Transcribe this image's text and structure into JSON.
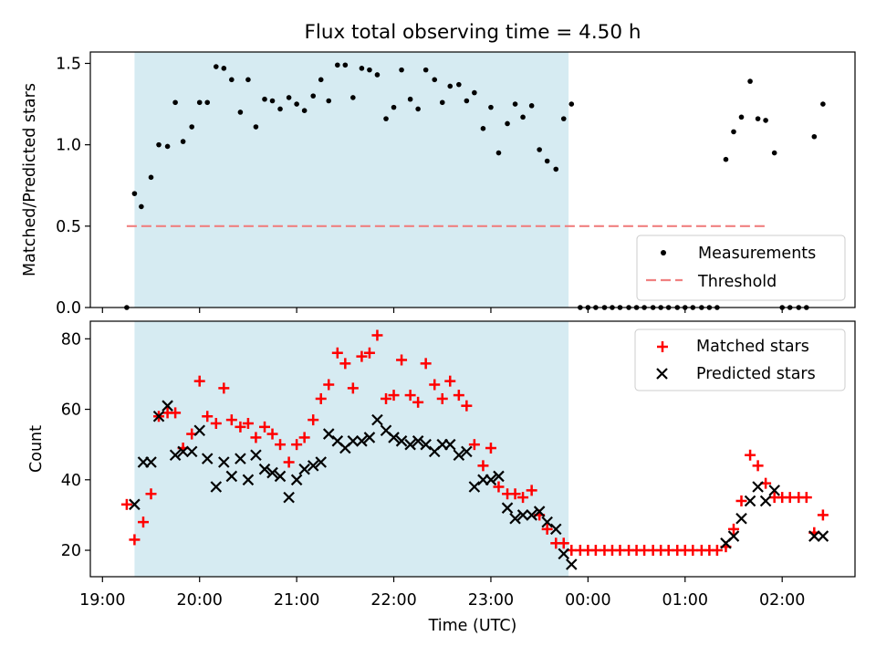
{
  "chart_data": {
    "title": "Flux total observing time = 4.50 h",
    "xlabel": "Time (UTC)",
    "x_ticks": [
      "19:00",
      "20:00",
      "21:00",
      "22:00",
      "23:00",
      "00:00",
      "01:00",
      "02:00"
    ],
    "observing_window_x": [
      19.33,
      23.8
    ],
    "panels": [
      {
        "type": "scatter",
        "ylabel": "Matched/Predicted stars",
        "ylim": [
          0,
          1.57
        ],
        "y_ticks": [
          "0.0",
          "0.5",
          "1.0",
          "1.5"
        ],
        "legend": {
          "position": "lower-right",
          "items": [
            "Measurements",
            "Threshold"
          ]
        },
        "threshold": {
          "name": "Threshold",
          "value": 0.5,
          "x_range": [
            19.25,
            25.83
          ],
          "color": "#f08080"
        },
        "series": [
          {
            "name": "Measurements",
            "color": "#000000",
            "points": [
              [
                19.25,
                0
              ],
              [
                19.33,
                0.7
              ],
              [
                19.4,
                0.62
              ],
              [
                19.5,
                0.8
              ],
              [
                19.58,
                1.0
              ],
              [
                19.67,
                0.99
              ],
              [
                19.75,
                1.26
              ],
              [
                19.83,
                1.02
              ],
              [
                19.92,
                1.11
              ],
              [
                20.0,
                1.26
              ],
              [
                20.08,
                1.26
              ],
              [
                20.17,
                1.48
              ],
              [
                20.25,
                1.47
              ],
              [
                20.33,
                1.4
              ],
              [
                20.42,
                1.2
              ],
              [
                20.5,
                1.4
              ],
              [
                20.58,
                1.11
              ],
              [
                20.67,
                1.28
              ],
              [
                20.75,
                1.27
              ],
              [
                20.83,
                1.22
              ],
              [
                20.92,
                1.29
              ],
              [
                21.0,
                1.25
              ],
              [
                21.08,
                1.21
              ],
              [
                21.17,
                1.3
              ],
              [
                21.25,
                1.4
              ],
              [
                21.33,
                1.27
              ],
              [
                21.42,
                1.49
              ],
              [
                21.5,
                1.49
              ],
              [
                21.58,
                1.29
              ],
              [
                21.67,
                1.47
              ],
              [
                21.75,
                1.46
              ],
              [
                21.83,
                1.43
              ],
              [
                21.92,
                1.16
              ],
              [
                22.0,
                1.23
              ],
              [
                22.08,
                1.46
              ],
              [
                22.17,
                1.28
              ],
              [
                22.25,
                1.22
              ],
              [
                22.33,
                1.46
              ],
              [
                22.42,
                1.4
              ],
              [
                22.5,
                1.26
              ],
              [
                22.58,
                1.36
              ],
              [
                22.67,
                1.37
              ],
              [
                22.75,
                1.27
              ],
              [
                22.83,
                1.32
              ],
              [
                22.92,
                1.1
              ],
              [
                23.0,
                1.23
              ],
              [
                23.08,
                0.95
              ],
              [
                23.17,
                1.13
              ],
              [
                23.25,
                1.25
              ],
              [
                23.33,
                1.17
              ],
              [
                23.42,
                1.24
              ],
              [
                23.5,
                0.97
              ],
              [
                23.58,
                0.9
              ],
              [
                23.67,
                0.85
              ],
              [
                23.75,
                1.16
              ],
              [
                23.83,
                1.25
              ],
              [
                23.92,
                0
              ],
              [
                24.0,
                0
              ],
              [
                24.08,
                0
              ],
              [
                24.17,
                0
              ],
              [
                24.25,
                0
              ],
              [
                24.33,
                0
              ],
              [
                24.42,
                0
              ],
              [
                24.5,
                0
              ],
              [
                24.58,
                0
              ],
              [
                24.67,
                0
              ],
              [
                24.75,
                0
              ],
              [
                24.83,
                0
              ],
              [
                24.92,
                0
              ],
              [
                25.0,
                0
              ],
              [
                25.08,
                0
              ],
              [
                25.17,
                0
              ],
              [
                25.25,
                0
              ],
              [
                25.33,
                0
              ],
              [
                25.42,
                0.91
              ],
              [
                25.5,
                1.08
              ],
              [
                25.58,
                1.17
              ],
              [
                25.67,
                1.39
              ],
              [
                25.75,
                1.16
              ],
              [
                25.83,
                1.15
              ],
              [
                25.92,
                0.95
              ],
              [
                26.0,
                0
              ],
              [
                26.08,
                0
              ],
              [
                26.17,
                0
              ],
              [
                26.25,
                0
              ],
              [
                26.33,
                1.05
              ],
              [
                26.42,
                1.25
              ]
            ]
          }
        ]
      },
      {
        "type": "scatter",
        "ylabel": "Count",
        "ylim": [
          12.5,
          85
        ],
        "y_ticks": [
          "20",
          "40",
          "60",
          "80"
        ],
        "legend": {
          "position": "top-right",
          "items": [
            "Matched stars",
            "Predicted stars"
          ]
        },
        "series": [
          {
            "name": "Matched stars",
            "marker": "+",
            "color": "#ff0000",
            "points": [
              [
                19.25,
                33
              ],
              [
                19.33,
                23
              ],
              [
                19.42,
                28
              ],
              [
                19.5,
                36
              ],
              [
                19.58,
                58
              ],
              [
                19.67,
                59
              ],
              [
                19.75,
                59
              ],
              [
                19.83,
                49
              ],
              [
                19.92,
                53
              ],
              [
                20.0,
                68
              ],
              [
                20.08,
                58
              ],
              [
                20.17,
                56
              ],
              [
                20.25,
                66
              ],
              [
                20.33,
                57
              ],
              [
                20.42,
                55
              ],
              [
                20.5,
                56
              ],
              [
                20.58,
                52
              ],
              [
                20.67,
                55
              ],
              [
                20.75,
                53
              ],
              [
                20.83,
                50
              ],
              [
                20.92,
                45
              ],
              [
                21.0,
                50
              ],
              [
                21.08,
                52
              ],
              [
                21.17,
                57
              ],
              [
                21.25,
                63
              ],
              [
                21.33,
                67
              ],
              [
                21.42,
                76
              ],
              [
                21.5,
                73
              ],
              [
                21.58,
                66
              ],
              [
                21.67,
                75
              ],
              [
                21.75,
                76
              ],
              [
                21.83,
                81
              ],
              [
                21.92,
                63
              ],
              [
                22.0,
                64
              ],
              [
                22.08,
                74
              ],
              [
                22.17,
                64
              ],
              [
                22.25,
                62
              ],
              [
                22.33,
                73
              ],
              [
                22.42,
                67
              ],
              [
                22.5,
                63
              ],
              [
                22.58,
                68
              ],
              [
                22.67,
                64
              ],
              [
                22.75,
                61
              ],
              [
                22.83,
                50
              ],
              [
                22.92,
                44
              ],
              [
                23.0,
                49
              ],
              [
                23.08,
                38
              ],
              [
                23.17,
                36
              ],
              [
                23.25,
                36
              ],
              [
                23.33,
                35
              ],
              [
                23.42,
                37
              ],
              [
                23.5,
                30
              ],
              [
                23.58,
                26
              ],
              [
                23.67,
                22
              ],
              [
                23.75,
                22
              ],
              [
                23.83,
                20
              ],
              [
                23.92,
                20
              ],
              [
                24.0,
                20
              ],
              [
                24.08,
                20
              ],
              [
                24.17,
                20
              ],
              [
                24.25,
                20
              ],
              [
                24.33,
                20
              ],
              [
                24.42,
                20
              ],
              [
                24.5,
                20
              ],
              [
                24.58,
                20
              ],
              [
                24.67,
                20
              ],
              [
                24.75,
                20
              ],
              [
                24.83,
                20
              ],
              [
                24.92,
                20
              ],
              [
                25.0,
                20
              ],
              [
                25.08,
                20
              ],
              [
                25.17,
                20
              ],
              [
                25.25,
                20
              ],
              [
                25.33,
                20
              ],
              [
                25.42,
                21
              ],
              [
                25.5,
                26
              ],
              [
                25.58,
                34
              ],
              [
                25.67,
                47
              ],
              [
                25.75,
                44
              ],
              [
                25.83,
                39
              ],
              [
                25.92,
                35
              ],
              [
                26.0,
                35
              ],
              [
                26.08,
                35
              ],
              [
                26.17,
                35
              ],
              [
                26.25,
                35
              ],
              [
                26.33,
                25
              ],
              [
                26.42,
                30
              ]
            ]
          },
          {
            "name": "Predicted stars",
            "marker": "x",
            "color": "#000000",
            "points": [
              [
                19.33,
                33
              ],
              [
                19.42,
                45
              ],
              [
                19.5,
                45
              ],
              [
                19.58,
                58
              ],
              [
                19.67,
                61
              ],
              [
                19.75,
                47
              ],
              [
                19.83,
                48
              ],
              [
                19.92,
                48
              ],
              [
                20.0,
                54
              ],
              [
                20.08,
                46
              ],
              [
                20.17,
                38
              ],
              [
                20.25,
                45
              ],
              [
                20.33,
                41
              ],
              [
                20.42,
                46
              ],
              [
                20.5,
                40
              ],
              [
                20.58,
                47
              ],
              [
                20.67,
                43
              ],
              [
                20.75,
                42
              ],
              [
                20.83,
                41
              ],
              [
                20.92,
                35
              ],
              [
                21.0,
                40
              ],
              [
                21.08,
                43
              ],
              [
                21.17,
                44
              ],
              [
                21.25,
                45
              ],
              [
                21.33,
                53
              ],
              [
                21.42,
                51
              ],
              [
                21.5,
                49
              ],
              [
                21.58,
                51
              ],
              [
                21.67,
                51
              ],
              [
                21.75,
                52
              ],
              [
                21.83,
                57
              ],
              [
                21.92,
                54
              ],
              [
                22.0,
                52
              ],
              [
                22.08,
                51
              ],
              [
                22.17,
                50
              ],
              [
                22.25,
                51
              ],
              [
                22.33,
                50
              ],
              [
                22.42,
                48
              ],
              [
                22.5,
                50
              ],
              [
                22.58,
                50
              ],
              [
                22.67,
                47
              ],
              [
                22.75,
                48
              ],
              [
                22.83,
                38
              ],
              [
                22.92,
                40
              ],
              [
                23.0,
                40
              ],
              [
                23.08,
                41
              ],
              [
                23.17,
                32
              ],
              [
                23.25,
                29
              ],
              [
                23.33,
                30
              ],
              [
                23.42,
                30
              ],
              [
                23.5,
                31
              ],
              [
                23.58,
                28
              ],
              [
                23.67,
                26
              ],
              [
                23.75,
                19
              ],
              [
                23.83,
                16
              ],
              [
                25.42,
                22
              ],
              [
                25.5,
                24
              ],
              [
                25.58,
                29
              ],
              [
                25.67,
                34
              ],
              [
                25.75,
                38
              ],
              [
                25.83,
                34
              ],
              [
                25.92,
                37
              ],
              [
                26.33,
                24
              ],
              [
                26.42,
                24
              ]
            ]
          }
        ]
      }
    ]
  }
}
